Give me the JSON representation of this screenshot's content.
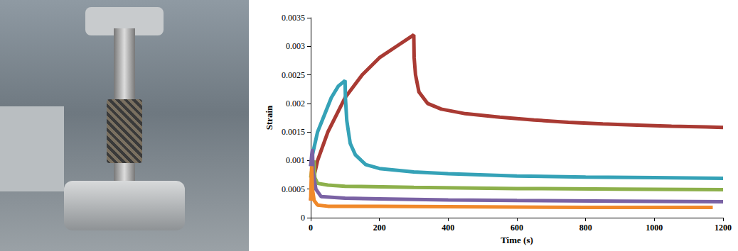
{
  "chart_data": {
    "type": "line",
    "x_label": "Time (s)",
    "y_label": "Strain",
    "xlim": [
      0,
      1200
    ],
    "xticks": [
      0,
      200,
      400,
      600,
      800,
      1000,
      1200
    ],
    "ylim": [
      0,
      0.0035
    ],
    "yticks": [
      0,
      0.0005,
      0.001,
      0.0015,
      0.002,
      0.0025,
      0.003,
      0.0035
    ],
    "grid": false,
    "line_style": "solid",
    "series": [
      {
        "color": "#a93a33",
        "x": [
          0,
          5,
          20,
          50,
          100,
          150,
          200,
          250,
          300,
          301,
          305,
          315,
          340,
          380,
          450,
          550,
          650,
          750,
          850,
          950,
          1050,
          1150,
          1200
        ],
        "values": [
          0.0003,
          0.0006,
          0.001,
          0.0015,
          0.0021,
          0.0025,
          0.0028,
          0.003,
          0.0032,
          0.0028,
          0.0025,
          0.0022,
          0.002,
          0.0019,
          0.00182,
          0.00176,
          0.00171,
          0.00167,
          0.00164,
          0.00162,
          0.0016,
          0.00159,
          0.00158
        ]
      },
      {
        "color": "#35a2b7",
        "x": [
          0,
          5,
          20,
          40,
          60,
          80,
          100,
          101,
          105,
          115,
          130,
          160,
          200,
          300,
          400,
          600,
          800,
          1000,
          1200
        ],
        "values": [
          0.0009,
          0.0011,
          0.0015,
          0.0018,
          0.0021,
          0.0023,
          0.0024,
          0.0021,
          0.0017,
          0.0013,
          0.0011,
          0.00093,
          0.00086,
          0.0008,
          0.00077,
          0.00073,
          0.00071,
          0.0007,
          0.00069
        ]
      },
      {
        "color": "#8db04b",
        "x": [
          0,
          5,
          10,
          12,
          20,
          50,
          100,
          300,
          600,
          900,
          1200
        ],
        "values": [
          0.0007,
          0.0009,
          0.001,
          0.0007,
          0.0006,
          0.00057,
          0.00055,
          0.00053,
          0.00051,
          0.0005,
          0.00049
        ]
      },
      {
        "color": "#7a62a4",
        "x": [
          0,
          3,
          5,
          7,
          15,
          30,
          100,
          200,
          400,
          600,
          900,
          1200
        ],
        "values": [
          0.0009,
          0.0011,
          0.0012,
          0.0008,
          0.0005,
          0.00037,
          0.00034,
          0.00033,
          0.00031,
          0.0003,
          0.00029,
          0.00028
        ]
      },
      {
        "color": "#f0892a",
        "x": [
          0,
          2,
          3,
          5,
          10,
          20,
          50,
          200,
          500,
          800,
          1170
        ],
        "values": [
          0.0003,
          0.0008,
          0.0009,
          0.0005,
          0.0003,
          0.00022,
          0.0002,
          0.0002,
          0.00019,
          0.00018,
          0.00018
        ]
      }
    ]
  }
}
